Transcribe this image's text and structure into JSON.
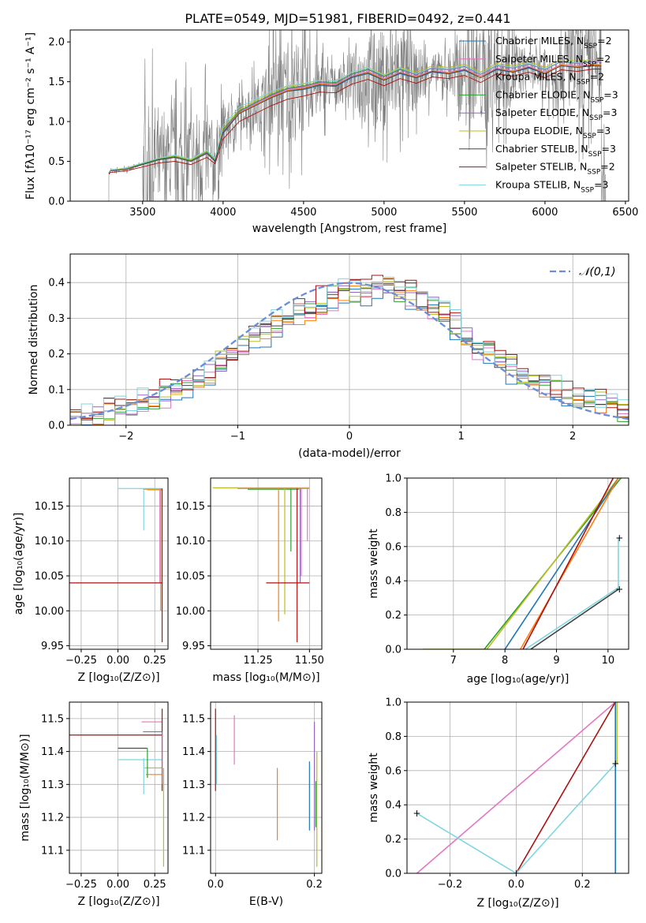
{
  "title": "PLATE=0549, MJD=51981, FIBERID=0492, z=0.441",
  "chart_data": [
    {
      "id": "spectrum",
      "type": "line",
      "xlabel": "wavelength [Angstrom, rest frame]",
      "ylabel": "Flux [f_λ 10^-17 erg cm^-2 s^-1 A^-1]",
      "xlim": [
        3050,
        6520
      ],
      "ylim": [
        0,
        2.15
      ],
      "xticks": [
        3500,
        4000,
        4500,
        5000,
        5500,
        6000,
        6500
      ],
      "yticks": [
        0.0,
        0.5,
        1.0,
        1.5,
        2.0
      ],
      "grid": false,
      "legend_position": "top-right",
      "data": {
        "name": "data",
        "color": "#808080",
        "range": [
          3200,
          6380
        ]
      },
      "models": [
        {
          "name": "Chabrier MILES, N_SSP=2",
          "color": "#1f77b4",
          "x": [
            3290,
            3300,
            3400,
            3500,
            3600,
            3700,
            3800,
            3900,
            3950,
            4000,
            4100,
            4200,
            4300,
            4400,
            4500,
            4600,
            4700,
            4800,
            4900,
            5000,
            5100,
            5200,
            5300,
            5400,
            5500,
            5600,
            5700,
            5800,
            5900,
            6000,
            6100,
            6200,
            6300,
            6350
          ],
          "y": [
            0.35,
            0.38,
            0.4,
            0.46,
            0.52,
            0.55,
            0.5,
            0.6,
            0.5,
            0.85,
            1.1,
            1.2,
            1.3,
            1.38,
            1.4,
            1.45,
            1.44,
            1.55,
            1.6,
            1.52,
            1.6,
            1.55,
            1.62,
            1.6,
            1.64,
            1.55,
            1.65,
            1.62,
            1.67,
            1.6,
            1.7,
            1.68,
            1.7,
            1.7
          ]
        },
        {
          "name": "Salpeter MILES, N_SSP=2",
          "color": "#e377c2",
          "x": [
            3290,
            3300,
            3400,
            3500,
            3600,
            3700,
            3800,
            3900,
            3950,
            4000,
            4100,
            4200,
            4300,
            4400,
            4500,
            4600,
            4700,
            4800,
            4900,
            5000,
            5100,
            5200,
            5300,
            5400,
            5500,
            5600,
            5700,
            5800,
            5900,
            6000,
            6100,
            6200,
            6300,
            6350
          ],
          "y": [
            0.36,
            0.39,
            0.41,
            0.47,
            0.53,
            0.56,
            0.51,
            0.62,
            0.52,
            0.9,
            1.12,
            1.22,
            1.32,
            1.4,
            1.43,
            1.48,
            1.47,
            1.57,
            1.63,
            1.54,
            1.62,
            1.57,
            1.64,
            1.62,
            1.66,
            1.57,
            1.67,
            1.64,
            1.69,
            1.62,
            1.72,
            1.7,
            1.72,
            1.72
          ]
        },
        {
          "name": "Kroupa MILES, N_SSP=2",
          "color": "#ff7f0e",
          "x": [
            3290,
            3300,
            3400,
            3500,
            3600,
            3700,
            3800,
            3900,
            3950,
            4000,
            4100,
            4200,
            4300,
            4400,
            4500,
            4600,
            4700,
            4800,
            4900,
            5000,
            5100,
            5200,
            5300,
            5400,
            5500,
            5600,
            5700,
            5800,
            5900,
            6000,
            6100,
            6200,
            6300,
            6350
          ],
          "y": [
            0.35,
            0.38,
            0.4,
            0.46,
            0.52,
            0.55,
            0.5,
            0.61,
            0.51,
            0.87,
            1.11,
            1.21,
            1.31,
            1.39,
            1.42,
            1.47,
            1.46,
            1.56,
            1.62,
            1.53,
            1.61,
            1.56,
            1.63,
            1.61,
            1.65,
            1.56,
            1.66,
            1.63,
            1.68,
            1.61,
            1.71,
            1.69,
            1.71,
            1.71
          ]
        },
        {
          "name": "Chabrier ELODIE, N_SSP=3",
          "color": "#2ca02c",
          "x": [
            3290,
            3300,
            3400,
            3500,
            3600,
            3700,
            3800,
            3900,
            3950,
            4000,
            4100,
            4200,
            4300,
            4400,
            4500,
            4600,
            4700,
            4800,
            4900,
            5000,
            5100,
            5200,
            5300,
            5400,
            5500,
            5600,
            5700,
            5800,
            5900,
            6000,
            6100,
            6200,
            6300,
            6350
          ],
          "y": [
            0.36,
            0.39,
            0.41,
            0.47,
            0.53,
            0.56,
            0.51,
            0.62,
            0.52,
            0.9,
            1.13,
            1.24,
            1.34,
            1.42,
            1.45,
            1.5,
            1.49,
            1.6,
            1.66,
            1.57,
            1.66,
            1.6,
            1.68,
            1.66,
            1.7,
            1.6,
            1.71,
            1.68,
            1.73,
            1.66,
            1.76,
            1.74,
            1.76,
            1.76
          ]
        },
        {
          "name": "Salpeter ELODIE, N_SSP=3",
          "color": "#9467bd",
          "x": [
            3290,
            3300,
            3400,
            3500,
            3600,
            3700,
            3800,
            3900,
            3950,
            4000,
            4100,
            4200,
            4300,
            4400,
            4500,
            4600,
            4700,
            4800,
            4900,
            5000,
            5100,
            5200,
            5300,
            5400,
            5500,
            5600,
            5700,
            5800,
            5900,
            6000,
            6100,
            6200,
            6300,
            6350
          ],
          "y": [
            0.35,
            0.38,
            0.4,
            0.46,
            0.52,
            0.55,
            0.5,
            0.61,
            0.51,
            0.88,
            1.12,
            1.23,
            1.33,
            1.41,
            1.44,
            1.49,
            1.48,
            1.59,
            1.65,
            1.56,
            1.65,
            1.59,
            1.67,
            1.65,
            1.69,
            1.59,
            1.7,
            1.67,
            1.72,
            1.65,
            1.75,
            1.73,
            1.75,
            1.75
          ]
        },
        {
          "name": "Kroupa ELODIE, N_SSP=3",
          "color": "#bcbd22",
          "x": [
            3290,
            3300,
            3400,
            3500,
            3600,
            3700,
            3800,
            3900,
            3950,
            4000,
            4100,
            4200,
            4300,
            4400,
            4500,
            4600,
            4700,
            4800,
            4900,
            5000,
            5100,
            5200,
            5300,
            5400,
            5500,
            5600,
            5700,
            5800,
            5900,
            6000,
            6100,
            6200,
            6300,
            6350
          ],
          "y": [
            0.36,
            0.39,
            0.41,
            0.48,
            0.54,
            0.57,
            0.52,
            0.63,
            0.53,
            0.92,
            1.15,
            1.26,
            1.36,
            1.44,
            1.47,
            1.52,
            1.51,
            1.62,
            1.68,
            1.59,
            1.68,
            1.62,
            1.7,
            1.68,
            1.72,
            1.62,
            1.73,
            1.7,
            1.75,
            1.68,
            1.78,
            1.76,
            1.78,
            1.78
          ]
        },
        {
          "name": "Chabrier STELIB, N_SSP=3",
          "color": "#444444",
          "x": [
            3290,
            3300,
            3400,
            3500,
            3600,
            3700,
            3800,
            3900,
            3950,
            4000,
            4100,
            4200,
            4300,
            4400,
            4500,
            4600,
            4700,
            4800,
            4900,
            5000,
            5100,
            5200,
            5300,
            5400,
            5500,
            5600,
            5700,
            5800,
            5900,
            6000,
            6100,
            6200,
            6300,
            6350
          ],
          "y": [
            0.35,
            0.38,
            0.4,
            0.46,
            0.52,
            0.55,
            0.5,
            0.6,
            0.5,
            0.86,
            1.1,
            1.2,
            1.3,
            1.38,
            1.41,
            1.46,
            1.45,
            1.56,
            1.61,
            1.52,
            1.61,
            1.55,
            1.63,
            1.6,
            1.65,
            1.55,
            1.66,
            1.62,
            1.68,
            1.6,
            1.7,
            1.68,
            1.7,
            1.7
          ]
        },
        {
          "name": "Salpeter STELIB, N_SSP=2",
          "color": "#aa1111",
          "x": [
            3290,
            3300,
            3400,
            3500,
            3600,
            3700,
            3800,
            3900,
            3950,
            4000,
            4100,
            4200,
            4300,
            4400,
            4500,
            4600,
            4700,
            4800,
            4900,
            5000,
            5100,
            5200,
            5300,
            5400,
            5500,
            5600,
            5700,
            5800,
            5900,
            6000,
            6100,
            6200,
            6300,
            6350
          ],
          "y": [
            0.34,
            0.36,
            0.38,
            0.43,
            0.48,
            0.5,
            0.46,
            0.55,
            0.47,
            0.78,
            1.0,
            1.1,
            1.2,
            1.28,
            1.32,
            1.37,
            1.36,
            1.47,
            1.53,
            1.45,
            1.54,
            1.48,
            1.56,
            1.54,
            1.58,
            1.49,
            1.6,
            1.57,
            1.62,
            1.55,
            1.65,
            1.63,
            1.66,
            1.66
          ]
        },
        {
          "name": "Kroupa STELIB, N_SSP=3",
          "color": "#7fd6e0",
          "x": [
            3290,
            3300,
            3400,
            3500,
            3600,
            3700,
            3800,
            3900,
            3950,
            4000,
            4100,
            4200,
            4300,
            4400,
            4500,
            4600,
            4700,
            4800,
            4900,
            5000,
            5100,
            5200,
            5300,
            5400,
            5500,
            5600,
            5700,
            5800,
            5900,
            6000,
            6100,
            6200,
            6300,
            6350
          ],
          "y": [
            0.36,
            0.39,
            0.42,
            0.48,
            0.54,
            0.58,
            0.53,
            0.64,
            0.54,
            0.95,
            1.18,
            1.28,
            1.38,
            1.45,
            1.48,
            1.52,
            1.51,
            1.62,
            1.68,
            1.58,
            1.67,
            1.6,
            1.68,
            1.66,
            1.7,
            1.6,
            1.71,
            1.68,
            1.73,
            1.66,
            1.76,
            1.74,
            1.76,
            1.76
          ]
        }
      ]
    },
    {
      "id": "residuals",
      "type": "line",
      "xlabel": "(data-model)/error",
      "ylabel": "Normed distribution",
      "xlim": [
        -2.5,
        2.5
      ],
      "ylim": [
        0,
        0.48
      ],
      "xticks": [
        -2,
        -1,
        0,
        1,
        2
      ],
      "yticks": [
        0.0,
        0.1,
        0.2,
        0.3,
        0.4
      ],
      "grid": true,
      "legend": "𝒩(0,1)",
      "legend_position": "top-right",
      "gauss_color": "#6a8fd8",
      "hist_colors": [
        "#1f77b4",
        "#e377c2",
        "#ff7f0e",
        "#2ca02c",
        "#9467bd",
        "#bcbd22",
        "#444444",
        "#aa1111",
        "#7fd6e0"
      ],
      "hist_centers": [
        -2.45,
        -2.35,
        -2.25,
        -2.15,
        -2.05,
        -1.95,
        -1.85,
        -1.75,
        -1.65,
        -1.55,
        -1.45,
        -1.35,
        -1.25,
        -1.15,
        -1.05,
        -0.95,
        -0.85,
        -0.75,
        -0.65,
        -0.55,
        -0.45,
        -0.35,
        -0.25,
        -0.15,
        -0.05,
        0.05,
        0.15,
        0.25,
        0.35,
        0.45,
        0.55,
        0.65,
        0.75,
        0.85,
        0.95,
        1.05,
        1.15,
        1.25,
        1.35,
        1.45,
        1.55,
        1.65,
        1.75,
        1.85,
        1.95,
        2.05,
        2.15,
        2.25,
        2.35,
        2.45
      ],
      "hist_base": [
        0.02,
        0.02,
        0.03,
        0.04,
        0.04,
        0.05,
        0.06,
        0.07,
        0.09,
        0.1,
        0.11,
        0.13,
        0.15,
        0.18,
        0.2,
        0.22,
        0.24,
        0.26,
        0.28,
        0.3,
        0.32,
        0.33,
        0.35,
        0.36,
        0.37,
        0.38,
        0.38,
        0.39,
        0.39,
        0.38,
        0.37,
        0.35,
        0.33,
        0.31,
        0.28,
        0.25,
        0.22,
        0.2,
        0.18,
        0.16,
        0.14,
        0.12,
        0.11,
        0.1,
        0.09,
        0.08,
        0.07,
        0.06,
        0.05,
        0.04
      ]
    },
    {
      "id": "age-vs-Z",
      "type": "scatter",
      "xlabel": "Z [log10(Z/Z_sun)]",
      "ylabel": "age  [log10(age/yr)]",
      "xlim": [
        -0.33,
        0.34
      ],
      "ylim": [
        9.945,
        10.19
      ],
      "xticks": [
        -0.25,
        0.0,
        0.25
      ],
      "xticklabels": [
        "−0.25",
        "0.00",
        "0.25"
      ],
      "yticks": [
        9.95,
        10.0,
        10.05,
        10.1,
        10.15
      ],
      "grid": true
    },
    {
      "id": "age-vs-mass",
      "type": "scatter",
      "xlabel": "mass [log10(M/M_sun)]",
      "ylabel": "",
      "xlim": [
        11.02,
        11.56
      ],
      "ylim": [
        9.945,
        10.19
      ],
      "xticks": [
        11.25,
        11.5
      ],
      "xticklabels": [
        "11.25",
        "11.50"
      ],
      "yticks": [
        9.95,
        10.0,
        10.05,
        10.1,
        10.15
      ],
      "grid": true
    },
    {
      "id": "weight-vs-age",
      "type": "line",
      "xlabel": "age  [log10(age/yr)]",
      "ylabel": "mass weight",
      "xlim": [
        6.1,
        10.4
      ],
      "ylim": [
        0,
        1.0
      ],
      "xticks": [
        7,
        8,
        9,
        10
      ],
      "yticks": [
        0.0,
        0.2,
        0.4,
        0.6,
        0.8,
        1.0
      ],
      "grid": true
    },
    {
      "id": "mass-vs-Z",
      "type": "scatter",
      "xlabel": "Z [log10(Z/Z_sun)]",
      "ylabel": "mass [log10(M/M_sun)]",
      "xlim": [
        -0.33,
        0.34
      ],
      "ylim": [
        11.03,
        11.55
      ],
      "xticks": [
        -0.25,
        0.0,
        0.25
      ],
      "xticklabels": [
        "−0.25",
        "0.00",
        "0.25"
      ],
      "yticks": [
        11.1,
        11.2,
        11.3,
        11.4,
        11.5
      ],
      "grid": true
    },
    {
      "id": "mass-vs-EBV",
      "type": "scatter",
      "xlabel": "E(B-V)",
      "ylabel": "",
      "xlim": [
        -0.01,
        0.215
      ],
      "ylim": [
        11.03,
        11.55
      ],
      "xticks": [
        0.0,
        0.2
      ],
      "xticklabels": [
        "0.0",
        "0.2"
      ],
      "yticks": [
        11.1,
        11.2,
        11.3,
        11.4,
        11.5
      ],
      "grid": true
    },
    {
      "id": "weight-vs-Z",
      "type": "line",
      "xlabel": "Z [log10(Z/Z_sun)]",
      "ylabel": "mass weight",
      "xlim": [
        -0.33,
        0.34
      ],
      "ylim": [
        0,
        1.0
      ],
      "xticks": [
        -0.2,
        0.0,
        0.2
      ],
      "xticklabels": [
        "−0.2",
        "0.0",
        "0.2"
      ],
      "yticks": [
        0.0,
        0.2,
        0.4,
        0.6,
        0.8,
        1.0
      ],
      "grid": true
    }
  ]
}
